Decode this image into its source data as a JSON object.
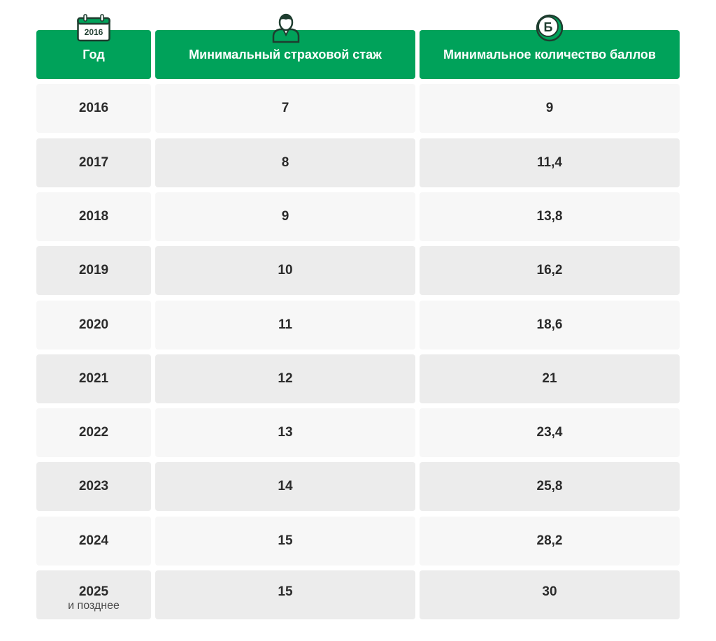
{
  "header": {
    "year_label": "Год",
    "experience_label": "Минимальный страховой стаж",
    "points_label": "Минимальное количество баллов",
    "calendar_icon_text": "2016",
    "coin_icon_text": "Б",
    "icon_color": "#00a25a"
  },
  "rows": [
    {
      "year": "2016",
      "note": "",
      "experience": "7",
      "points": "9"
    },
    {
      "year": "2017",
      "note": "",
      "experience": "8",
      "points": "11,4"
    },
    {
      "year": "2018",
      "note": "",
      "experience": "9",
      "points": "13,8"
    },
    {
      "year": "2019",
      "note": "",
      "experience": "10",
      "points": "16,2"
    },
    {
      "year": "2020",
      "note": "",
      "experience": "11",
      "points": "18,6"
    },
    {
      "year": "2021",
      "note": "",
      "experience": "12",
      "points": "21"
    },
    {
      "year": "2022",
      "note": "",
      "experience": "13",
      "points": "23,4"
    },
    {
      "year": "2023",
      "note": "",
      "experience": "14",
      "points": "25,8"
    },
    {
      "year": "2024",
      "note": "",
      "experience": "15",
      "points": "28,2"
    },
    {
      "year": "2025",
      "note": "и позднее",
      "experience": "15",
      "points": "30"
    }
  ]
}
